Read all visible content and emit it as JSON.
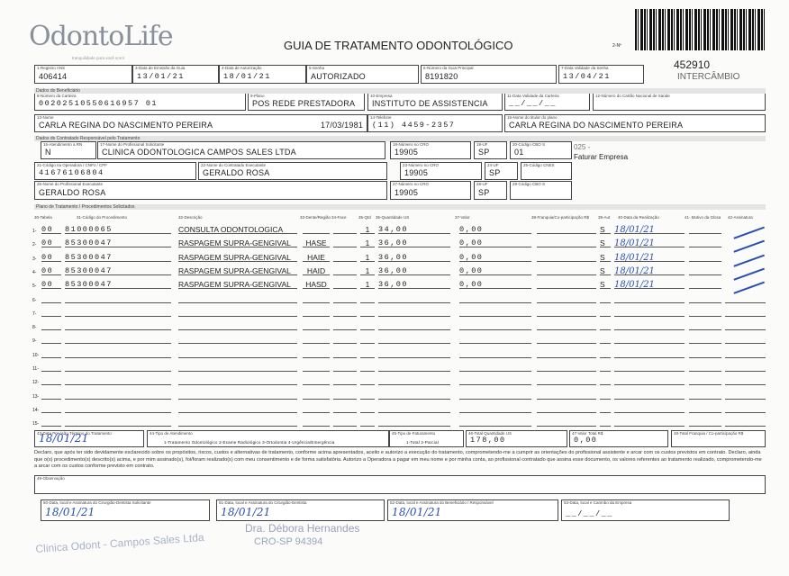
{
  "header": {
    "logo": "OdontoLife",
    "logo_tagline": "tranquilidade para você sorrir",
    "title": "GUIA DE TRATAMENTO ODONTOLÓGICO",
    "guide_number_label": "2-Nº",
    "guide_number": "452910",
    "guide_type": "INTERCÂMBIO"
  },
  "fields": {
    "f1": {
      "label": "1-Registro ANS",
      "value": "406414"
    },
    "f3": {
      "label": "3-Data de Emissão da Guia",
      "value": "13/01/21"
    },
    "f4": {
      "label": "4-Data de Autorização",
      "value": "18/01/21"
    },
    "f5": {
      "label": "5-Senha",
      "value": "AUTORIZADO"
    },
    "f6": {
      "label": "6-Número da Guia Principal",
      "value": "8191820"
    },
    "f7": {
      "label": "7-Data Validade da Senha",
      "value": "13/04/21"
    },
    "f8": {
      "label": "8-Número da Carteira",
      "value": "00202510550616957 01"
    },
    "f9": {
      "label": "9-Plano",
      "value": "POS REDE PRESTADORA"
    },
    "f10": {
      "label": "10-Empresa",
      "value": "INSTITUTO DE ASSISTENCIA"
    },
    "f11": {
      "label": "11-Data Validade da Carteira",
      "value": "__/__/__"
    },
    "f12": {
      "label": "12-Número do Cartão Nacional de Saúde",
      "value": ""
    },
    "f13": {
      "label": "13-Nome",
      "value": "CARLA REGINA DO NASCIMENTO PEREIRA",
      "birth": "17/03/1981"
    },
    "f14": {
      "label": "14-Telefone",
      "value": "(11) 4459-2357"
    },
    "f15": {
      "label": "15-Nome do titular do plano",
      "value": "CARLA REGINA DO NASCIMENTO PEREIRA"
    },
    "f16": {
      "label": "16-Atendimento a RN",
      "value": "N"
    },
    "f17": {
      "label": "17-Nome do Profissional Solicitante",
      "value": "CLINICA ODONTOLOGICA CAMPOS SALES LTDA"
    },
    "f18": {
      "label": "18-Número no CRO",
      "value": "19905"
    },
    "f19": {
      "label": "19-UF",
      "value": "SP"
    },
    "f20": {
      "label": "20-Código CBO S",
      "value": "01"
    },
    "f21": {
      "label": "21-Código na Operadora / CNPJ / CPF",
      "value": "41676106804"
    },
    "f22": {
      "label": "22-Nome do Contratado Executante",
      "value": "GERALDO ROSA"
    },
    "f23": {
      "label": "23-Número no CRO",
      "value": "19905"
    },
    "f24": {
      "label": "24-UF",
      "value": "SP"
    },
    "f25": {
      "label": "25-Código CNES",
      "value": ""
    },
    "f26": {
      "label": "26-Nome do Profissional Executante",
      "value": "GERALDO ROSA"
    },
    "f27": {
      "label": "27-Número no CRO",
      "value": "19905"
    },
    "f28": {
      "label": "28-UF",
      "value": "SP"
    },
    "f29": {
      "label": "29-Código CBO S",
      "value": ""
    }
  },
  "billing_note": {
    "code": "025 -",
    "text": "Faturar Empresa"
  },
  "sections": {
    "beneficiary": "Dados do Beneficiário",
    "contracted": "Dados do Contratado Responsável pelo Tratamento",
    "plan": "Plano de Tratamento / Procedimentos Solicitados"
  },
  "table": {
    "headers": [
      "30-Tabela",
      "31-Código do Procedimento",
      "32-Descrição",
      "33-Dente/Região",
      "34-Face",
      "35-Qtd",
      "36-Quantidade US",
      "37-Valor",
      "38-Franquia/Co-participação R$",
      "39-Aut",
      "40-Data da Realização",
      "41- Motivo da Glosa",
      "42-Assinatura"
    ],
    "rows": [
      {
        "n": "1-",
        "tabela": "00",
        "codigo": "81000065",
        "descricao": "CONSULTA ODONTOLOGICA",
        "dente": "",
        "face": "",
        "qtd": "1",
        "us": "34,00",
        "valor": "0,00",
        "aut": "S",
        "data": "18/01/21"
      },
      {
        "n": "2-",
        "tabela": "00",
        "codigo": "85300047",
        "descricao": "RASPAGEM SUPRA-GENGIVAL",
        "dente": "HASE",
        "face": "",
        "qtd": "1",
        "us": "36,00",
        "valor": "0,00",
        "aut": "S",
        "data": "18/01/21"
      },
      {
        "n": "3-",
        "tabela": "00",
        "codigo": "85300047",
        "descricao": "RASPAGEM SUPRA-GENGIVAL",
        "dente": "HAIE",
        "face": "",
        "qtd": "1",
        "us": "36,00",
        "valor": "0,00",
        "aut": "S",
        "data": "18/01/21"
      },
      {
        "n": "4-",
        "tabela": "00",
        "codigo": "85300047",
        "descricao": "RASPAGEM SUPRA-GENGIVAL",
        "dente": "HAID",
        "face": "",
        "qtd": "1",
        "us": "36,00",
        "valor": "0,00",
        "aut": "S",
        "data": "18/01/21"
      },
      {
        "n": "5-",
        "tabela": "00",
        "codigo": "85300047",
        "descricao": "RASPAGEM SUPRA-GENGIVAL",
        "dente": "HASD",
        "face": "",
        "qtd": "1",
        "us": "36,00",
        "valor": "0,00",
        "aut": "S",
        "data": "18/01/21"
      },
      {
        "n": "6-"
      },
      {
        "n": "7-"
      },
      {
        "n": "8-"
      },
      {
        "n": "9-"
      },
      {
        "n": "10-"
      },
      {
        "n": "11-"
      },
      {
        "n": "12-"
      },
      {
        "n": "13-"
      },
      {
        "n": "14-"
      },
      {
        "n": "15-"
      }
    ]
  },
  "totals": {
    "f43": {
      "label": "43-Data Previsão Término do Tratamento",
      "value": "18/01/21"
    },
    "f44": {
      "label": "44-Tipo de Atendimento",
      "options": "1-Tratamento Odontológico  2-Exame Radiológico  3-Ortodontia  4-Urgência/Emergência"
    },
    "f45": {
      "label": "45-Tipo de Faturamento",
      "options": "1-Total  2-Parcial"
    },
    "f46": {
      "label": "46-Total Quantidade US",
      "value": "178,00"
    },
    "f47": {
      "label": "47-Valor Total R$",
      "value": "0,00"
    },
    "f48": {
      "label": "48-Total Franquia / Co-participação R$",
      "value": ""
    }
  },
  "declaration": "Declaro, que após ter sido devidamente esclarecido sobre os propósitos, riscos, custos e alternativas de tratamento, conforme acima apresentados, aceito e autorizo a execução do tratamento, comprometendo-me a cumprir as orientações do profissional assistente e arcar com os custos previstos em contrato. Declaro, ainda que o(s) procedimento(s) descrito(s) acima, e por mim assinado(s), foi/foram realizado(s) com meu consentimento e de forma satisfatória. Autorizo a Operadora a pagar em meu nome e por minha conta, ao profissional contratado que assina esse documento, os valores referentes ao tratamento realizado, comprometendo-me a arcar com os custos conforme previsto em contrato.",
  "f49": {
    "label": "49-Observação",
    "value": ""
  },
  "signatures": {
    "f50": {
      "label": "50-Data, local e Assinatura do Cirurgião-Dentista Solicitante",
      "value": "18/01/21"
    },
    "f51": {
      "label": "51-Data, local e Assinatura do Cirurgião-Dentista",
      "value": "18/01/21"
    },
    "f52": {
      "label": "52-Data, local e Assinatura do Beneficiário / Responsável",
      "value": "18/01/21"
    },
    "f53": {
      "label": "53-Data, local e Carimbo da Empresa",
      "value": "__/__/__"
    }
  },
  "stamp": {
    "name": "Dra. Débora Hernandes",
    "cro": "CRO-SP 94394",
    "watermark": "Clinica Odont - Campos Sales Ltda"
  },
  "colors": {
    "ink": "#2a4fb0",
    "stamp": "#9aa3bd"
  }
}
